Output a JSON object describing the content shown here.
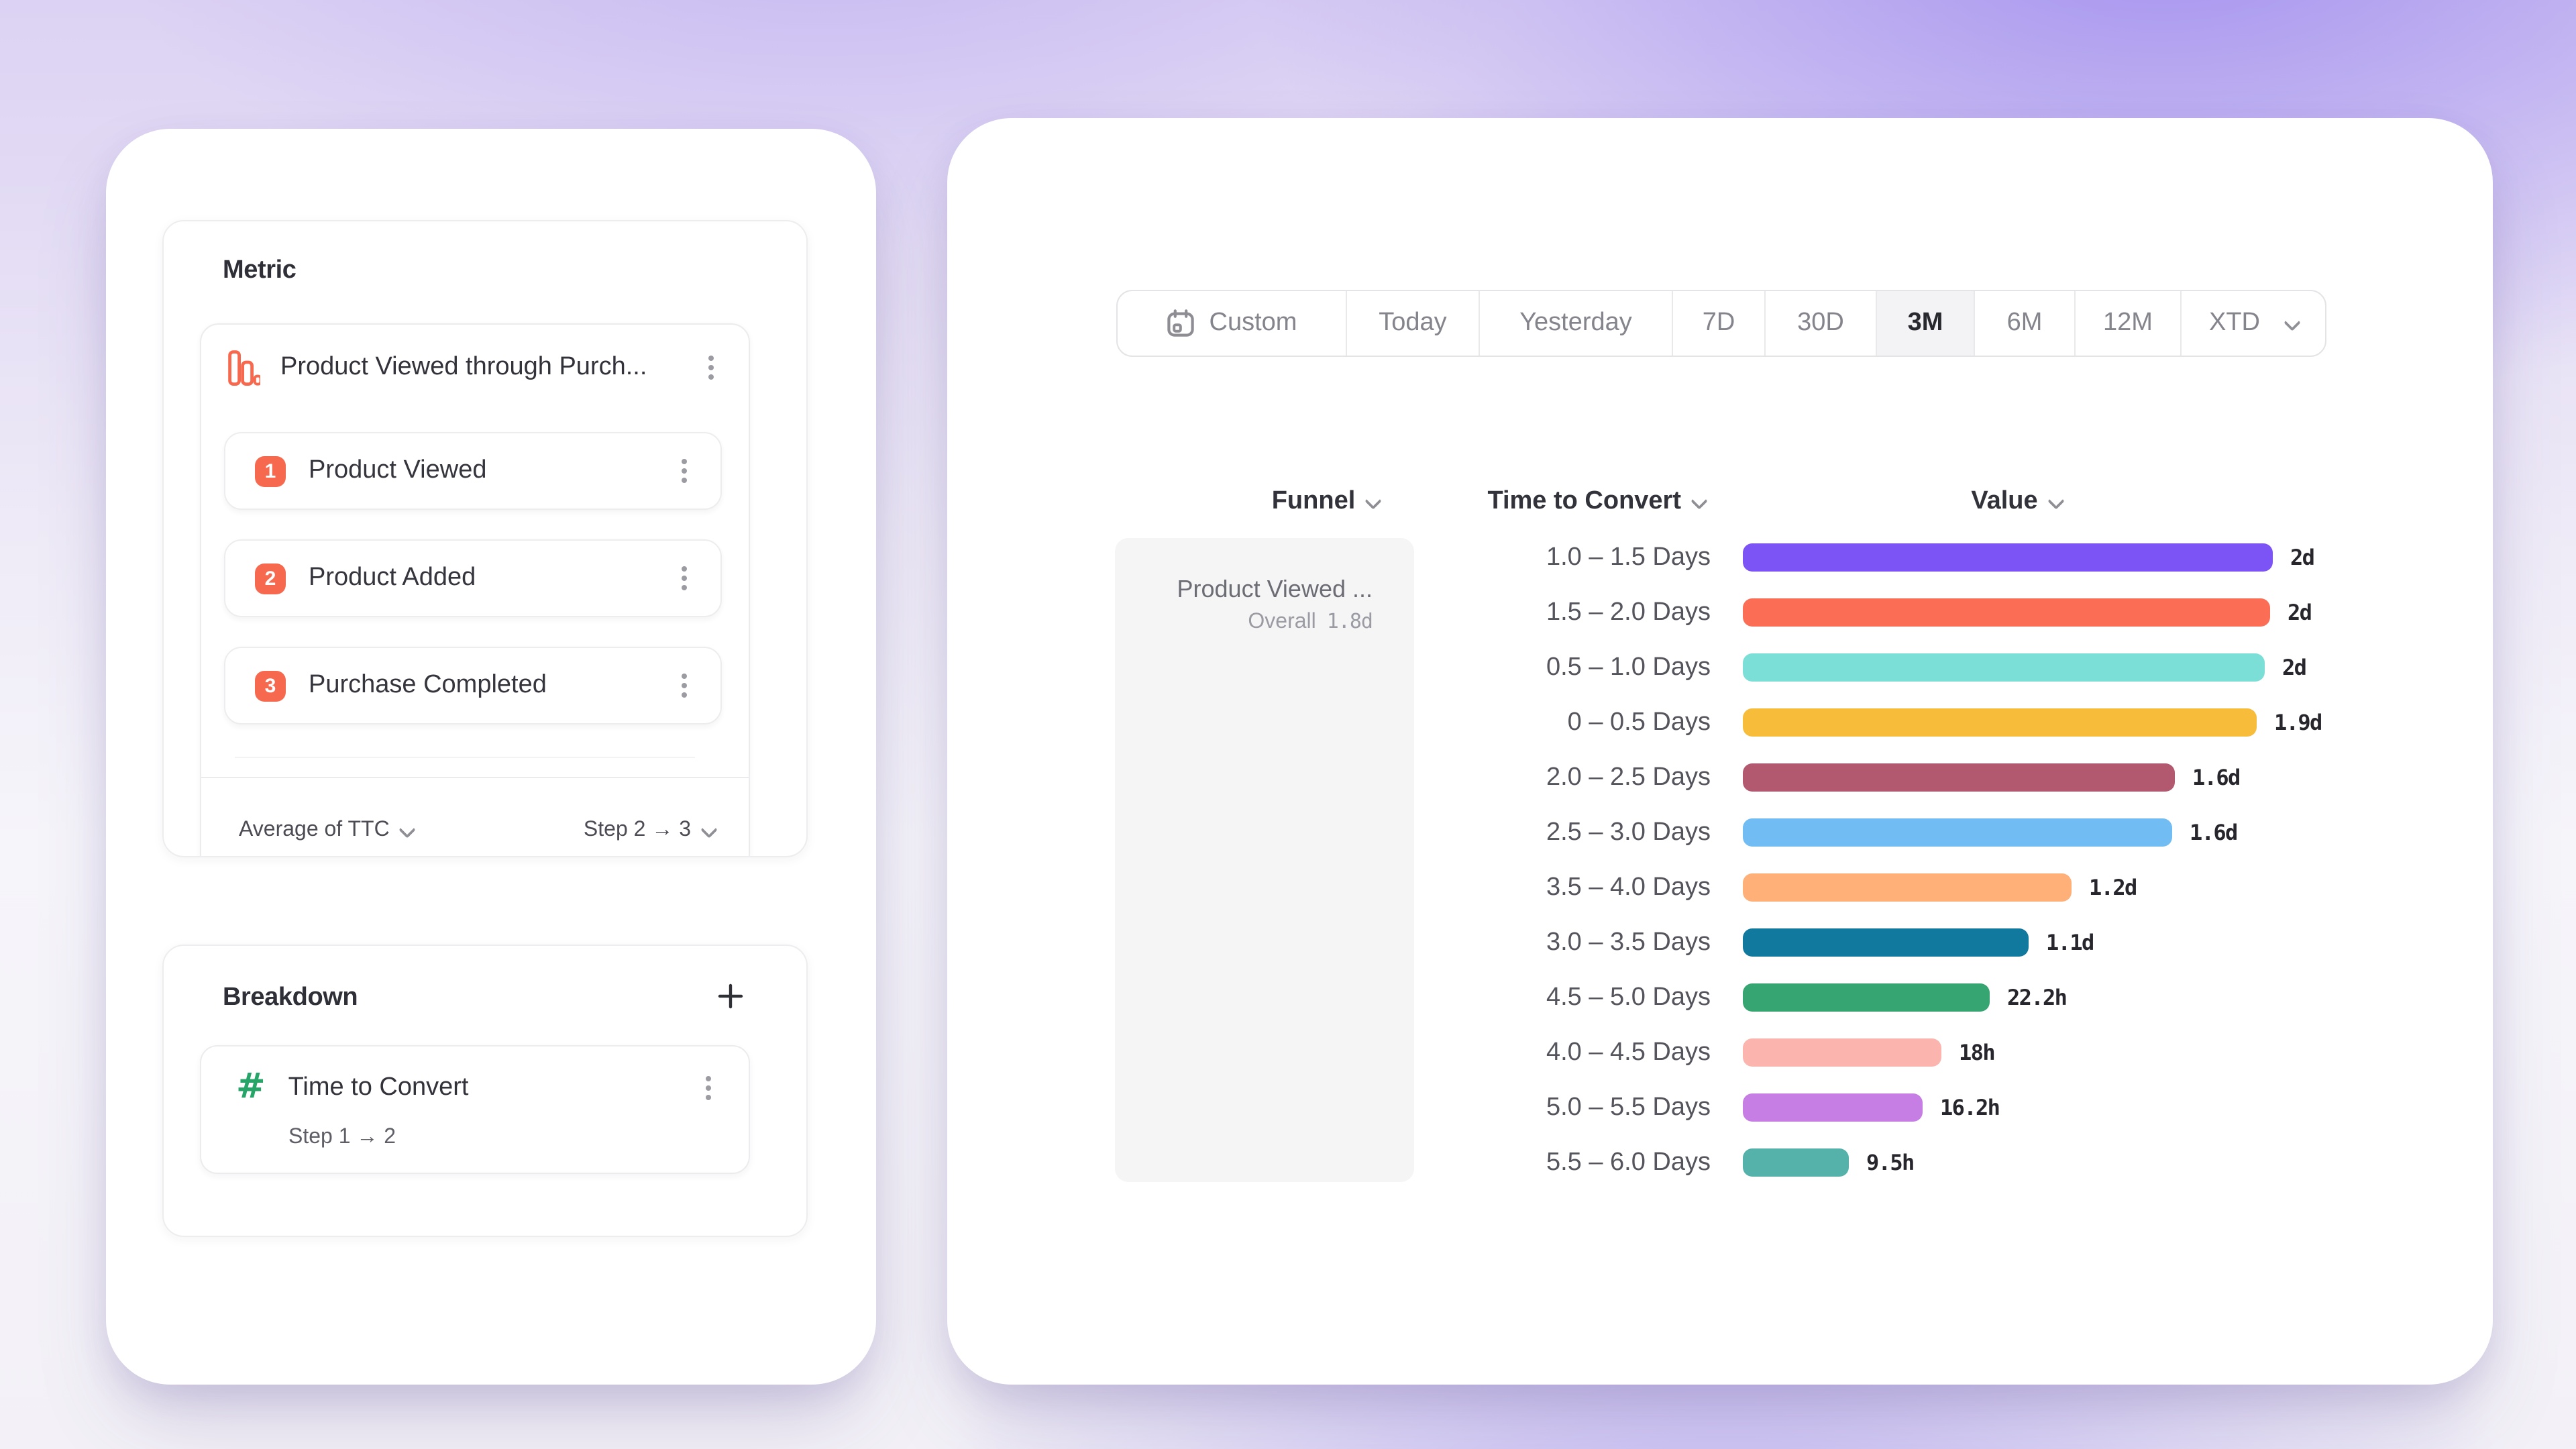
{
  "colors": {
    "accent_coral": "#F7694E",
    "hash_green": "#27A569",
    "selected_segment_bg": "#F3F3F5",
    "funnel_cell_bg": "#F5F5F6"
  },
  "left_panel": {
    "metric": {
      "title": "Metric",
      "funnel_title": "Product Viewed through Purch...",
      "steps": [
        {
          "num": "1",
          "label": "Product Viewed"
        },
        {
          "num": "2",
          "label": "Product Added"
        },
        {
          "num": "3",
          "label": "Purchase Completed"
        }
      ],
      "aggregation_label": "Average of TTC",
      "step_range_label": "Step 2 → 3"
    },
    "breakdown": {
      "title": "Breakdown",
      "item_label": "Time to Convert",
      "item_sub": "Step 1 → 2"
    }
  },
  "date_range": {
    "selected": "3M",
    "options": [
      "Custom",
      "Today",
      "Yesterday",
      "7D",
      "30D",
      "3M",
      "6M",
      "12M",
      "XTD"
    ],
    "segment_widths": [
      171,
      99,
      144,
      69,
      83,
      73,
      75,
      79,
      107
    ]
  },
  "table": {
    "headers": {
      "funnel": "Funnel",
      "time_to_convert": "Time to Convert",
      "value": "Value"
    },
    "funnel_cell": {
      "title": "Product Viewed ...",
      "overall_label": "Overall",
      "overall_value": "1.8d"
    }
  },
  "chart_data": {
    "type": "bar",
    "orientation": "horizontal",
    "legend": "none",
    "grid": false,
    "categories": [
      "1.0 – 1.5 Days",
      "1.5 – 2.0 Days",
      "0.5 – 1.0 Days",
      "0 – 0.5 Days",
      "2.0 – 2.5 Days",
      "2.5 – 3.0 Days",
      "3.5 – 4.0 Days",
      "3.0 – 3.5 Days",
      "4.5 – 5.0 Days",
      "4.0 – 4.5 Days",
      "5.0 – 5.5 Days",
      "5.5 – 6.0 Days"
    ],
    "value_labels": [
      "2d",
      "2d",
      "2d",
      "1.9d",
      "1.6d",
      "1.6d",
      "1.2d",
      "1.1d",
      "22.2h",
      "18h",
      "16.2h",
      "9.5h"
    ],
    "values_days": [
      2.0,
      1.99,
      1.97,
      1.94,
      1.63,
      1.62,
      1.24,
      1.08,
      0.93,
      0.75,
      0.68,
      0.4
    ],
    "bar_colors": [
      "#7C53F4",
      "#FB6E55",
      "#7CDFD7",
      "#F8BC3B",
      "#B2586F",
      "#70BCF3",
      "#FFB078",
      "#11799E",
      "#36A571",
      "#FCB5AE",
      "#C77EE4",
      "#55B2AB"
    ],
    "xlim_days": [
      0,
      2
    ]
  }
}
